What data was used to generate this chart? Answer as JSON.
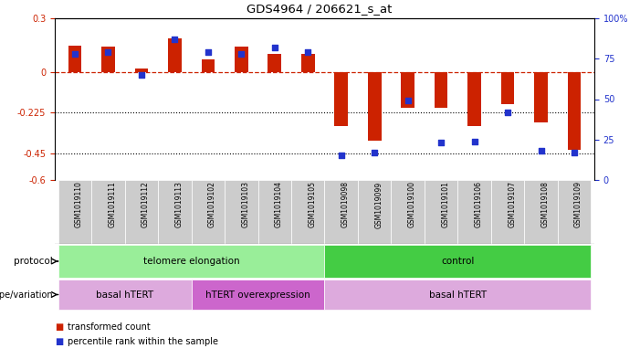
{
  "title": "GDS4964 / 206621_s_at",
  "samples": [
    "GSM1019110",
    "GSM1019111",
    "GSM1019112",
    "GSM1019113",
    "GSM1019102",
    "GSM1019103",
    "GSM1019104",
    "GSM1019105",
    "GSM1019098",
    "GSM1019099",
    "GSM1019100",
    "GSM1019101",
    "GSM1019106",
    "GSM1019107",
    "GSM1019108",
    "GSM1019109"
  ],
  "red_values": [
    0.15,
    0.14,
    0.02,
    0.19,
    0.07,
    0.14,
    0.1,
    0.1,
    -0.3,
    -0.38,
    -0.2,
    -0.2,
    -0.3,
    -0.18,
    -0.28,
    -0.43
  ],
  "blue_pct": [
    78,
    79,
    65,
    87,
    79,
    78,
    82,
    79,
    15,
    17,
    49,
    23,
    24,
    42,
    18,
    17
  ],
  "ylim_left": [
    -0.6,
    0.3
  ],
  "ylim_right": [
    0,
    100
  ],
  "left_yticks": [
    -0.6,
    -0.45,
    -0.225,
    0,
    0.3
  ],
  "left_yticklabels": [
    "-0.6",
    "-0.45",
    "-0.225",
    "0",
    "0.3"
  ],
  "right_yticks": [
    0,
    25,
    50,
    75,
    100
  ],
  "right_yticklabels": [
    "0",
    "25",
    "50",
    "75",
    "100%"
  ],
  "dotted_lines": [
    -0.225,
    -0.45
  ],
  "bar_color": "#cc2200",
  "dot_color": "#2233cc",
  "left_axis_color": "#cc2200",
  "right_axis_color": "#2233cc",
  "background_color": "#ffffff",
  "sample_bg_color": "#cccccc",
  "protocol_groups": [
    {
      "label": "telomere elongation",
      "start": 0,
      "end": 8,
      "color": "#99ee99"
    },
    {
      "label": "control",
      "start": 8,
      "end": 16,
      "color": "#44cc44"
    }
  ],
  "genotype_groups": [
    {
      "label": "basal hTERT",
      "start": 0,
      "end": 4,
      "color": "#ddaadd"
    },
    {
      "label": "hTERT overexpression",
      "start": 4,
      "end": 8,
      "color": "#cc66cc"
    },
    {
      "label": "basal hTERT",
      "start": 8,
      "end": 16,
      "color": "#ddaadd"
    }
  ],
  "legend_red_label": "transformed count",
  "legend_blue_label": "percentile rank within the sample",
  "protocol_label": "protocol",
  "genotype_label": "genotype/variation",
  "bar_width": 0.4
}
